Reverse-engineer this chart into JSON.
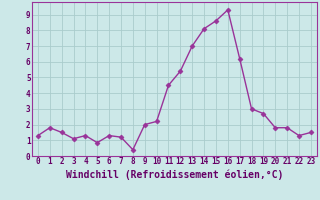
{
  "x": [
    0,
    1,
    2,
    3,
    4,
    5,
    6,
    7,
    8,
    9,
    10,
    11,
    12,
    13,
    14,
    15,
    16,
    17,
    18,
    19,
    20,
    21,
    22,
    23
  ],
  "y": [
    1.3,
    1.8,
    1.5,
    1.1,
    1.3,
    0.85,
    1.3,
    1.2,
    0.4,
    2.0,
    2.2,
    4.5,
    5.4,
    7.0,
    8.1,
    8.6,
    9.3,
    6.2,
    3.0,
    2.7,
    1.8,
    1.8,
    1.3,
    1.5
  ],
  "line_color": "#993399",
  "marker": "D",
  "marker_size": 2.5,
  "bg_color": "#cce8e8",
  "grid_color": "#aacccc",
  "spine_color": "#993399",
  "xlabel": "Windchill (Refroidissement éolien,°C)",
  "xlim": [
    -0.5,
    23.5
  ],
  "ylim": [
    0,
    9.8
  ],
  "yticks": [
    0,
    1,
    2,
    3,
    4,
    5,
    6,
    7,
    8,
    9
  ],
  "xticks": [
    0,
    1,
    2,
    3,
    4,
    5,
    6,
    7,
    8,
    9,
    10,
    11,
    12,
    13,
    14,
    15,
    16,
    17,
    18,
    19,
    20,
    21,
    22,
    23
  ],
  "font_color": "#660066",
  "tick_fontsize": 5.5,
  "label_fontsize": 7.0,
  "linewidth": 1.0
}
